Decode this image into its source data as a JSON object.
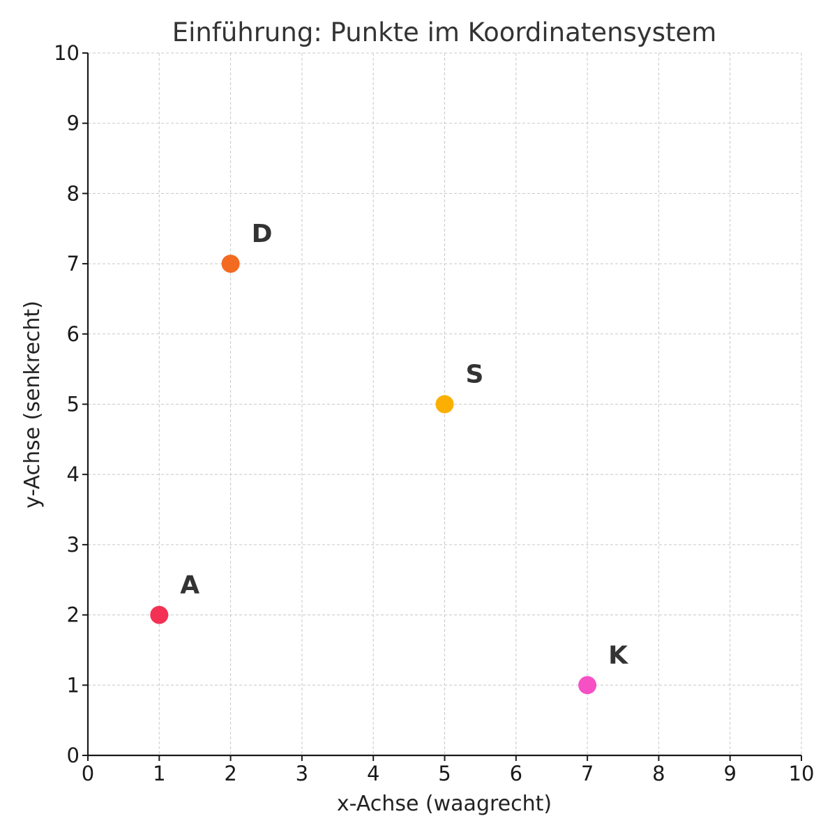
{
  "chart_data": {
    "type": "scatter",
    "title": "Einführung: Punkte im Koordinatensystem",
    "xlabel": "x-Achse (waagrecht)",
    "ylabel": "y-Achse (senkrecht)",
    "xlim": [
      0,
      10
    ],
    "ylim": [
      0,
      10
    ],
    "xticks": [
      "0",
      "1",
      "2",
      "3",
      "4",
      "5",
      "6",
      "7",
      "8",
      "9",
      "10"
    ],
    "yticks": [
      "0",
      "1",
      "2",
      "3",
      "4",
      "5",
      "6",
      "7",
      "8",
      "9",
      "10"
    ],
    "grid": true,
    "points": [
      {
        "label": "A",
        "x": 1,
        "y": 2,
        "color": "#f43155"
      },
      {
        "label": "D",
        "x": 2,
        "y": 7,
        "color": "#f26b21"
      },
      {
        "label": "S",
        "x": 5,
        "y": 5,
        "color": "#fbaf00"
      },
      {
        "label": "K",
        "x": 7,
        "y": 1,
        "color": "#f551c4"
      }
    ]
  }
}
